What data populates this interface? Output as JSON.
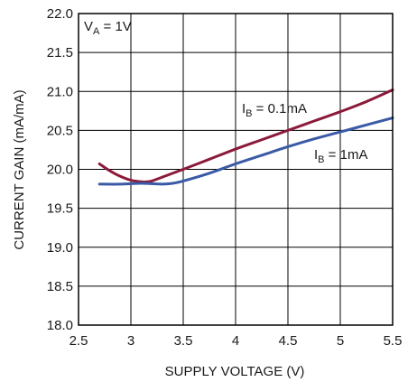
{
  "chart_data": {
    "type": "line",
    "title": "",
    "xlabel": "SUPPLY VOLTAGE (V)",
    "ylabel": "CURRENT GAIN (mA/mA)",
    "xlim": [
      2.5,
      5.5
    ],
    "ylim": [
      18.0,
      22.0
    ],
    "x_ticks": [
      2.5,
      3,
      3.5,
      4,
      4.5,
      5,
      5.5
    ],
    "x_tick_labels": [
      "2.5",
      "3",
      "3.5",
      "4",
      "4.5",
      "5",
      "5.5"
    ],
    "y_ticks": [
      18.0,
      18.5,
      19.0,
      19.5,
      20.0,
      20.5,
      21.0,
      21.5,
      22.0
    ],
    "y_tick_labels": [
      "18.0",
      "18.5",
      "19.0",
      "19.5",
      "20.0",
      "20.5",
      "21.0",
      "21.5",
      "22.0"
    ],
    "grid": true,
    "annotation": {
      "main": "V",
      "sub": "A",
      "rest": " = 1V"
    },
    "series": [
      {
        "label": {
          "main": "I",
          "sub": "B",
          "rest": " = 0.1mA"
        },
        "color": "#8b1a3a",
        "x": [
          2.7,
          2.8,
          2.9,
          3.0,
          3.1,
          3.15,
          3.2,
          3.3,
          3.5,
          3.75,
          4.0,
          4.25,
          4.5,
          4.75,
          5.0,
          5.25,
          5.5
        ],
        "y": [
          20.07,
          19.98,
          19.91,
          19.86,
          19.84,
          19.84,
          19.85,
          19.9,
          20.0,
          20.13,
          20.26,
          20.38,
          20.5,
          20.62,
          20.74,
          20.87,
          21.02
        ]
      },
      {
        "label": {
          "main": "I",
          "sub": "B",
          "rest": " = 1mA"
        },
        "color": "#3a5aa6",
        "x": [
          2.7,
          2.9,
          3.1,
          3.3,
          3.4,
          3.5,
          3.75,
          4.0,
          4.25,
          4.5,
          4.75,
          5.0,
          5.25,
          5.5
        ],
        "y": [
          19.81,
          19.81,
          19.82,
          19.81,
          19.82,
          19.85,
          19.95,
          20.07,
          20.18,
          20.29,
          20.39,
          20.48,
          20.57,
          20.66
        ]
      }
    ]
  }
}
